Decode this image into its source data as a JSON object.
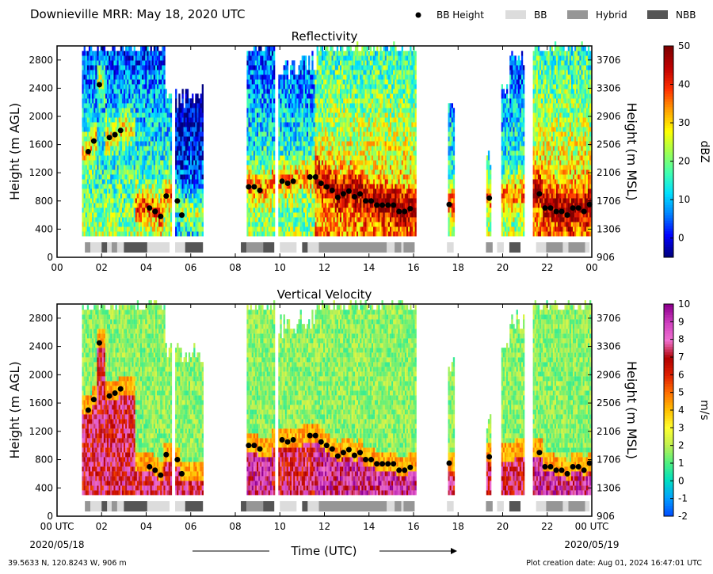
{
  "figure": {
    "title": "Downieville MRR:  May 18, 2020 UTC",
    "legend": [
      {
        "label": "BB Height",
        "marker": "dot",
        "color": "#000000"
      },
      {
        "label": "BB",
        "marker": "box",
        "color": "#dcdcdc"
      },
      {
        "label": "Hybrid",
        "marker": "box",
        "color": "#969696"
      },
      {
        "label": "NBB",
        "marker": "box",
        "color": "#555555"
      }
    ],
    "location": "39.5633 N, 120.8243 W, 906 m",
    "created": "Plot creation date: Aug 01, 2024 16:47:01 UTC",
    "xlabel": "Time (UTC)",
    "date_start": "2020/05/18",
    "date_end": "2020/05/19"
  },
  "chart_data": [
    {
      "type": "heatmap",
      "title": "Reflectivity",
      "ylabel": "Height (m AGL)",
      "ylabel_right": "Height (m MSL)",
      "colorbar_label": "dBZ",
      "x_ticks": [
        "00",
        "02",
        "04",
        "06",
        "08",
        "10",
        "12",
        "14",
        "16",
        "18",
        "20",
        "22",
        "00"
      ],
      "y_ticks": [
        "0",
        "400",
        "800",
        "1200",
        "1600",
        "2000",
        "2400",
        "2800"
      ],
      "y_ticks_right": [
        "906",
        "1306",
        "1706",
        "2106",
        "2506",
        "2906",
        "3306",
        "3706"
      ],
      "colorbar_ticks": [
        "0",
        "10",
        "20",
        "30",
        "40",
        "50"
      ],
      "colorbar_range": [
        -5,
        50
      ],
      "colors": [
        "#000080",
        "#0000ff",
        "#0080ff",
        "#00e0ff",
        "#40ffb0",
        "#a0ff50",
        "#ffff00",
        "#ffa000",
        "#ff3000",
        "#c00000",
        "#800000"
      ],
      "xlim": [
        0,
        24
      ],
      "ylim": [
        0,
        3000
      ]
    },
    {
      "type": "heatmap",
      "title": "Vertical Velocity",
      "ylabel": "Height (m AGL)",
      "ylabel_right": "Height (m MSL)",
      "colorbar_label": "m/s",
      "x_ticks": [
        "00 UTC",
        "02",
        "04",
        "06",
        "08",
        "10",
        "12",
        "14",
        "16",
        "18",
        "20",
        "22",
        "00 UTC"
      ],
      "y_ticks": [
        "0",
        "400",
        "800",
        "1200",
        "1600",
        "2000",
        "2400",
        "2800"
      ],
      "y_ticks_right": [
        "906",
        "1306",
        "1706",
        "2106",
        "2506",
        "2906",
        "3306",
        "3706"
      ],
      "colorbar_ticks": [
        "-2",
        "-1",
        "0",
        "1",
        "2",
        "3",
        "4",
        "5",
        "6",
        "7",
        "8",
        "9",
        "10"
      ],
      "colorbar_range": [
        -2,
        10
      ],
      "colors": [
        "#0050ff",
        "#00a0ff",
        "#00e0c0",
        "#50f080",
        "#c0f050",
        "#ffff30",
        "#ffc000",
        "#ff7000",
        "#e02000",
        "#b00000",
        "#f070d0",
        "#d040c0",
        "#900090"
      ],
      "xlim": [
        0,
        24
      ],
      "ylim": [
        0,
        3000
      ]
    }
  ],
  "bright_band": {
    "heights": [
      {
        "t": 1.4,
        "h": 1500
      },
      {
        "t": 1.65,
        "h": 1650
      },
      {
        "t": 1.9,
        "h": 2450
      },
      {
        "t": 2.35,
        "h": 1700
      },
      {
        "t": 2.6,
        "h": 1740
      },
      {
        "t": 2.85,
        "h": 1800
      },
      {
        "t": 4.15,
        "h": 700
      },
      {
        "t": 4.4,
        "h": 650
      },
      {
        "t": 4.65,
        "h": 580
      },
      {
        "t": 4.9,
        "h": 870
      },
      {
        "t": 5.4,
        "h": 800
      },
      {
        "t": 5.6,
        "h": 600
      },
      {
        "t": 8.6,
        "h": 1000
      },
      {
        "t": 8.85,
        "h": 1000
      },
      {
        "t": 9.1,
        "h": 950
      },
      {
        "t": 10.1,
        "h": 1080
      },
      {
        "t": 10.35,
        "h": 1050
      },
      {
        "t": 10.6,
        "h": 1080
      },
      {
        "t": 11.35,
        "h": 1140
      },
      {
        "t": 11.6,
        "h": 1140
      },
      {
        "t": 11.85,
        "h": 1050
      },
      {
        "t": 12.1,
        "h": 1000
      },
      {
        "t": 12.35,
        "h": 950
      },
      {
        "t": 12.6,
        "h": 850
      },
      {
        "t": 12.85,
        "h": 900
      },
      {
        "t": 13.1,
        "h": 940
      },
      {
        "t": 13.35,
        "h": 860
      },
      {
        "t": 13.6,
        "h": 900
      },
      {
        "t": 13.85,
        "h": 800
      },
      {
        "t": 14.1,
        "h": 800
      },
      {
        "t": 14.35,
        "h": 740
      },
      {
        "t": 14.6,
        "h": 740
      },
      {
        "t": 14.85,
        "h": 740
      },
      {
        "t": 15.1,
        "h": 740
      },
      {
        "t": 15.35,
        "h": 650
      },
      {
        "t": 15.6,
        "h": 650
      },
      {
        "t": 15.85,
        "h": 690
      },
      {
        "t": 17.6,
        "h": 750
      },
      {
        "t": 19.4,
        "h": 840
      },
      {
        "t": 21.65,
        "h": 900
      },
      {
        "t": 21.9,
        "h": 700
      },
      {
        "t": 22.15,
        "h": 700
      },
      {
        "t": 22.4,
        "h": 650
      },
      {
        "t": 22.65,
        "h": 650
      },
      {
        "t": 22.9,
        "h": 600
      },
      {
        "t": 23.15,
        "h": 700
      },
      {
        "t": 23.4,
        "h": 700
      },
      {
        "t": 23.65,
        "h": 650
      },
      {
        "t": 23.9,
        "h": 750
      }
    ],
    "classes": [
      {
        "start": 1.25,
        "end": 1.5,
        "kind": "Hybrid"
      },
      {
        "start": 1.5,
        "end": 2.0,
        "kind": "BB"
      },
      {
        "start": 2.0,
        "end": 2.25,
        "kind": "NBB"
      },
      {
        "start": 2.25,
        "end": 2.45,
        "kind": "BB"
      },
      {
        "start": 2.45,
        "end": 2.7,
        "kind": "Hybrid"
      },
      {
        "start": 2.7,
        "end": 3.0,
        "kind": "BB"
      },
      {
        "start": 3.0,
        "end": 4.05,
        "kind": "NBB"
      },
      {
        "start": 4.05,
        "end": 5.05,
        "kind": "BB"
      },
      {
        "start": 5.3,
        "end": 5.75,
        "kind": "BB"
      },
      {
        "start": 5.75,
        "end": 6.55,
        "kind": "NBB"
      },
      {
        "start": 8.25,
        "end": 8.5,
        "kind": "NBB"
      },
      {
        "start": 8.5,
        "end": 9.25,
        "kind": "Hybrid"
      },
      {
        "start": 9.25,
        "end": 9.75,
        "kind": "NBB"
      },
      {
        "start": 10.0,
        "end": 10.75,
        "kind": "BB"
      },
      {
        "start": 11.0,
        "end": 11.25,
        "kind": "NBB"
      },
      {
        "start": 11.25,
        "end": 11.75,
        "kind": "BB"
      },
      {
        "start": 11.75,
        "end": 14.8,
        "kind": "Hybrid"
      },
      {
        "start": 14.8,
        "end": 15.15,
        "kind": "BB"
      },
      {
        "start": 15.15,
        "end": 15.45,
        "kind": "Hybrid"
      },
      {
        "start": 15.45,
        "end": 15.55,
        "kind": "BB"
      },
      {
        "start": 15.55,
        "end": 16.05,
        "kind": "Hybrid"
      },
      {
        "start": 17.5,
        "end": 17.8,
        "kind": "BB"
      },
      {
        "start": 19.25,
        "end": 19.55,
        "kind": "Hybrid"
      },
      {
        "start": 19.75,
        "end": 20.05,
        "kind": "BB"
      },
      {
        "start": 20.3,
        "end": 20.8,
        "kind": "NBB"
      },
      {
        "start": 21.5,
        "end": 21.95,
        "kind": "BB"
      },
      {
        "start": 21.95,
        "end": 22.7,
        "kind": "Hybrid"
      },
      {
        "start": 22.7,
        "end": 22.95,
        "kind": "BB"
      },
      {
        "start": 22.95,
        "end": 23.7,
        "kind": "Hybrid"
      },
      {
        "start": 23.7,
        "end": 23.9,
        "kind": "BB"
      }
    ]
  }
}
